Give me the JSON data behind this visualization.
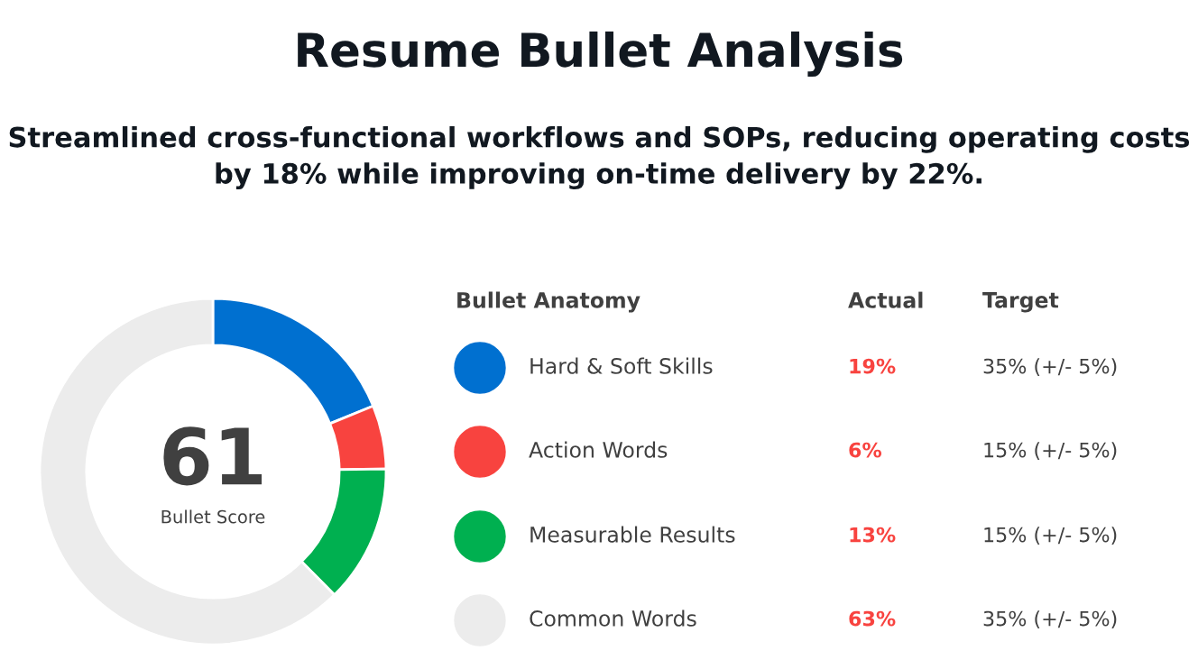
{
  "chart_data": {
    "type": "donut",
    "title": "Resume Bullet Analysis",
    "subtitle": "Streamlined cross-functional workflows and SOPs, reducing operating costs by 18% while improving on-time delivery by 22%.",
    "categories": [
      "Hard & Soft Skills",
      "Action Words",
      "Measurable Results",
      "Common Words"
    ],
    "values": [
      19,
      6,
      13,
      63
    ],
    "colors": [
      "#0070d0",
      "#f8433f",
      "#00b050",
      "#ececec"
    ],
    "value_labels": [
      "19%",
      "6%",
      "13%",
      "63%"
    ],
    "legend": "right",
    "legend_title": "Bullet Anatomy",
    "annotations": [
      "61",
      "Bullet Score",
      "Actual",
      "Target",
      "35% (+/- 5%)",
      "15% (+/- 5%)",
      "15% (+/- 5%)",
      "35% (+/- 5%)"
    ]
  }
}
